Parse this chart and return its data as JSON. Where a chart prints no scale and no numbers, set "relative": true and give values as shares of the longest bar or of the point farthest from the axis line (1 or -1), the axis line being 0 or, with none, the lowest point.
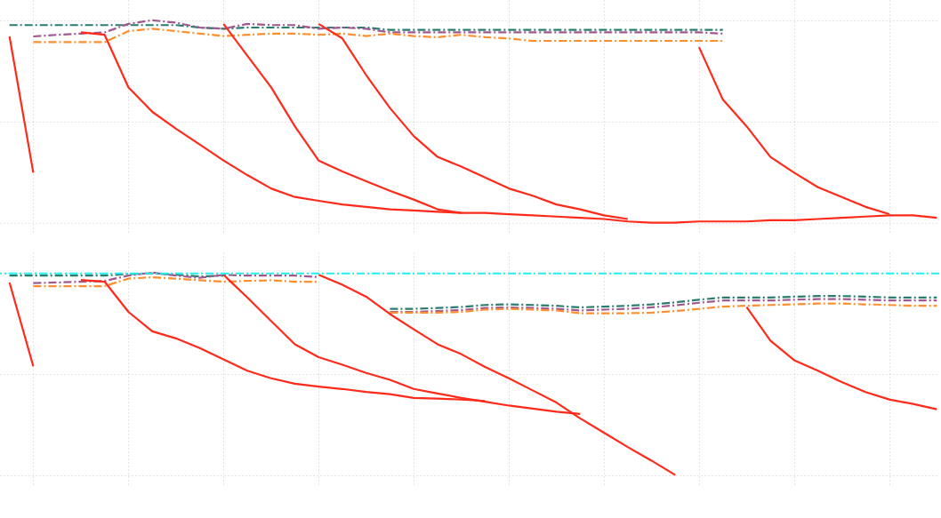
{
  "chart_data": [
    {
      "type": "line",
      "relative": true,
      "grid": true,
      "categories": [
        null,
        null,
        null,
        null,
        null,
        null,
        null,
        null,
        null,
        null,
        null,
        null,
        null,
        null,
        null,
        null,
        null,
        null,
        null,
        null,
        null,
        null,
        null,
        null,
        null,
        null,
        null,
        null,
        null,
        null,
        null,
        null,
        null,
        null,
        null,
        null,
        null,
        null,
        null,
        null
      ],
      "series": [
        {
          "color": "#2a7d6e",
          "line_style": "dashed",
          "values": [
            0.976,
            0.976,
            0.976,
            0.976,
            0.976,
            0.976,
            0.976,
            0.976,
            0.964,
            0.958,
            0.964,
            0.964,
            0.964,
            0.964,
            0.964,
            0.964,
            0.952,
            0.952,
            0.952,
            0.952,
            0.952,
            0.952,
            0.952,
            0.952,
            0.952,
            0.952,
            0.952,
            0.952,
            0.952,
            0.952,
            0.952,
            null,
            null,
            null,
            null,
            null,
            null,
            null,
            null,
            null
          ]
        },
        {
          "color": "#a0588f",
          "line_style": "dashed",
          "values": [
            null,
            0.92,
            0.928,
            0.934,
            0.94,
            0.982,
            1,
            0.988,
            0.964,
            0.958,
            0.982,
            0.976,
            0.976,
            0.958,
            0.964,
            0.958,
            0.94,
            0.94,
            0.94,
            0.94,
            0.94,
            0.94,
            0.94,
            0.94,
            0.94,
            0.94,
            0.94,
            0.94,
            0.94,
            0.94,
            0.934,
            null,
            null,
            null,
            null,
            null,
            null,
            null,
            null,
            null
          ]
        },
        {
          "color": "#ff8f2e",
          "line_style": "dashed",
          "values": [
            null,
            0.892,
            0.892,
            0.892,
            0.892,
            0.946,
            0.958,
            0.946,
            0.934,
            0.922,
            0.928,
            0.934,
            0.934,
            0.928,
            0.934,
            0.922,
            0.934,
            0.922,
            0.916,
            0.928,
            0.916,
            0.91,
            0.898,
            0.898,
            0.898,
            0.898,
            0.898,
            0.898,
            0.898,
            0.898,
            0.898,
            null,
            null,
            null,
            null,
            null,
            null,
            null,
            null,
            null
          ]
        },
        {
          "color": "#ff2a1a",
          "line_style": "solid",
          "values": [
            0.92,
            0.247,
            null,
            null,
            null,
            null,
            null,
            null,
            null,
            null,
            null,
            null,
            null,
            null,
            null,
            null,
            null,
            null,
            null,
            null,
            null,
            null,
            null,
            null,
            null,
            null,
            null,
            null,
            null,
            null,
            null,
            null,
            null,
            null,
            null,
            null,
            null,
            null,
            null,
            null
          ]
        },
        {
          "color": "#ff2a1a",
          "line_style": "solid",
          "values": [
            null,
            null,
            null,
            0.94,
            0.928,
            0.669,
            0.548,
            0.464,
            0.386,
            0.307,
            0.235,
            0.169,
            0.127,
            0.108,
            0.09,
            0.078,
            0.066,
            0.06,
            0.054,
            0.048,
            0.048,
            0.042,
            0.036,
            0.03,
            0.024,
            0.018,
            0.006,
            0,
            0,
            0.006,
            0.006,
            0.006,
            0.012,
            0.012,
            0.018,
            0.024,
            0.03,
            0.036,
            0.036,
            0.024
          ]
        },
        {
          "color": "#ff2a1a",
          "line_style": "solid",
          "values": [
            null,
            null,
            null,
            null,
            null,
            null,
            null,
            null,
            null,
            0.982,
            0.825,
            0.669,
            0.476,
            0.307,
            0.253,
            0.205,
            0.157,
            0.114,
            0.066,
            0.048,
            null,
            null,
            null,
            null,
            null,
            null,
            null,
            null,
            null,
            null,
            null,
            null,
            null,
            null,
            null,
            null,
            null,
            null,
            null,
            null
          ]
        },
        {
          "color": "#ff2a1a",
          "line_style": "solid",
          "values": [
            null,
            null,
            null,
            null,
            null,
            null,
            null,
            null,
            null,
            null,
            null,
            null,
            null,
            0.982,
            0.91,
            0.729,
            0.566,
            0.428,
            0.325,
            0.277,
            0.223,
            0.169,
            0.133,
            0.09,
            0.066,
            0.036,
            0.018,
            null,
            null,
            null,
            null,
            null,
            null,
            null,
            null,
            null,
            null,
            null,
            null,
            null
          ]
        },
        {
          "color": "#ff2a1a",
          "line_style": "solid",
          "values": [
            null,
            null,
            null,
            null,
            null,
            null,
            null,
            null,
            null,
            null,
            null,
            null,
            null,
            null,
            null,
            null,
            null,
            null,
            null,
            null,
            null,
            null,
            null,
            null,
            null,
            null,
            null,
            null,
            null,
            0.867,
            0.608,
            0.476,
            0.325,
            0.247,
            0.175,
            0.127,
            0.078,
            0.042,
            null,
            null
          ]
        }
      ]
    },
    {
      "type": "line",
      "relative": true,
      "grid": true,
      "categories": [
        null,
        null,
        null,
        null,
        null,
        null,
        null,
        null,
        null,
        null,
        null,
        null,
        null,
        null,
        null,
        null,
        null,
        null,
        null,
        null,
        null,
        null,
        null,
        null,
        null,
        null,
        null,
        null,
        null,
        null,
        null,
        null,
        null,
        null,
        null,
        null,
        null,
        null,
        null,
        null
      ],
      "ref_lines": [
        {
          "axis": "y",
          "value": 0.996,
          "color": "#22f0f0",
          "line_style": "dashed"
        }
      ],
      "series": [
        {
          "color": "#2a7d6e",
          "line_style": "dashed",
          "values": [
            0.985,
            0.985,
            0.985,
            0.985,
            0.985,
            0.993,
            0.996,
            0.99,
            0.981,
            0.985,
            null,
            null,
            null,
            null,
            null,
            null,
            0.821,
            0.821,
            0.825,
            0.83,
            0.84,
            0.843,
            0.84,
            0.836,
            0.828,
            0.832,
            0.836,
            0.843,
            0.853,
            0.866,
            0.877,
            0.877,
            0.877,
            0.881,
            0.884,
            0.884,
            0.881,
            0.877,
            0.877,
            0.877
          ]
        },
        {
          "color": "#a0588f",
          "line_style": "dashed",
          "values": [
            null,
            0.948,
            0.951,
            0.955,
            0.959,
            0.985,
            1,
            0.985,
            0.974,
            0.989,
            0.985,
            0.985,
            0.985,
            0.978,
            null,
            null,
            0.806,
            0.806,
            0.81,
            0.815,
            0.825,
            0.828,
            0.825,
            0.821,
            0.813,
            0.817,
            0.821,
            0.828,
            0.838,
            0.851,
            0.862,
            0.862,
            0.862,
            0.866,
            0.869,
            0.869,
            0.866,
            0.862,
            0.862,
            0.862
          ]
        },
        {
          "color": "#ff8f2e",
          "line_style": "dashed",
          "values": [
            null,
            0.933,
            0.933,
            0.933,
            0.933,
            0.97,
            0.977,
            0.97,
            0.962,
            0.955,
            0.959,
            0.962,
            0.955,
            0.955,
            null,
            null,
            0.802,
            0.802,
            0.802,
            0.806,
            0.817,
            0.821,
            0.817,
            0.813,
            0.799,
            0.799,
            0.799,
            0.802,
            0.81,
            0.821,
            0.832,
            0.836,
            0.84,
            0.843,
            0.847,
            0.847,
            0.843,
            0.84,
            0.836,
            0.836
          ]
        },
        {
          "color": "#ff2a1a",
          "line_style": "solid",
          "values": [
            0.951,
            0.537,
            null,
            null,
            null,
            null,
            null,
            null,
            null,
            null,
            null,
            null,
            null,
            null,
            null,
            null,
            null,
            null,
            null,
            null,
            null,
            null,
            null,
            null,
            null,
            null,
            null,
            null,
            null,
            null,
            null,
            null,
            null,
            null,
            null,
            null,
            null,
            null,
            null,
            null
          ]
        },
        {
          "color": "#ff2a1a",
          "line_style": "solid",
          "values": [
            null,
            null,
            null,
            0.963,
            0.955,
            0.806,
            0.71,
            0.675,
            0.627,
            0.571,
            0.515,
            0.478,
            0.451,
            0.437,
            0.425,
            0.41,
            0.399,
            0.381,
            0.377,
            0.373,
            0.366,
            null,
            null,
            null,
            null,
            null,
            null,
            null,
            null,
            null,
            null,
            null,
            null,
            null,
            null,
            null,
            null,
            null,
            null,
            null
          ]
        },
        {
          "color": "#ff2a1a",
          "line_style": "solid",
          "values": [
            null,
            null,
            null,
            null,
            null,
            null,
            null,
            null,
            null,
            0.989,
            0.877,
            0.761,
            0.646,
            0.582,
            0.545,
            0.504,
            0.47,
            0.425,
            0.403,
            0.381,
            0.362,
            0.343,
            0.328,
            0.313,
            0.302,
            null,
            null,
            null,
            null,
            null,
            null,
            null,
            null,
            null,
            null,
            null,
            null,
            null,
            null,
            null
          ]
        },
        {
          "color": "#ff2a1a",
          "line_style": "solid",
          "values": [
            null,
            null,
            null,
            null,
            null,
            null,
            null,
            null,
            null,
            null,
            null,
            null,
            null,
            0.989,
            0.94,
            0.881,
            0.795,
            0.72,
            0.646,
            0.597,
            0.534,
            0.478,
            0.418,
            0.358,
            0.28,
            0.209,
            0.138,
            0.071,
            0,
            null,
            null,
            null,
            null,
            null,
            null,
            null,
            null,
            null,
            null,
            null
          ]
        },
        {
          "color": "#ff2a1a",
          "line_style": "solid",
          "values": [
            null,
            null,
            null,
            null,
            null,
            null,
            null,
            null,
            null,
            null,
            null,
            null,
            null,
            null,
            null,
            null,
            null,
            null,
            null,
            null,
            null,
            null,
            null,
            null,
            null,
            null,
            null,
            null,
            null,
            null,
            null,
            0.83,
            0.664,
            0.567,
            0.515,
            0.459,
            0.41,
            0.373,
            0.351,
            0.325
          ]
        }
      ]
    }
  ]
}
